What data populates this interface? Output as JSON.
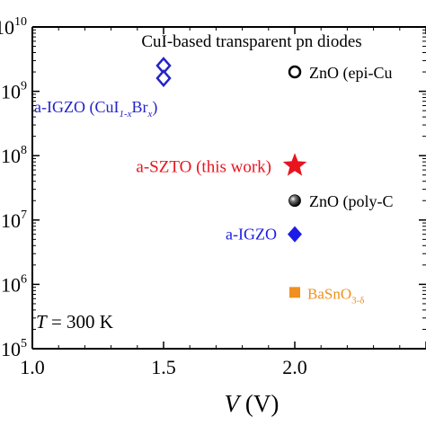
{
  "chart_data": {
    "type": "scatter",
    "title": "CuI-based transparent pn diodes",
    "x_axis": {
      "label_var": "V",
      "label_unit": "(V)",
      "range": [
        1.0,
        2.5
      ],
      "ticks": [
        "1.0",
        "1.5",
        "2.0"
      ],
      "tick_values": [
        1.0,
        1.5,
        2.0
      ],
      "minor_step": 0.1
    },
    "y_axis": {
      "scale": "log",
      "range_exponent": [
        5,
        10
      ],
      "tick_exponents": [
        5,
        6,
        7,
        8,
        9,
        10
      ],
      "tick_base_visible": "10"
    },
    "annotation": {
      "var": "T",
      "text": " = 300 K"
    },
    "points": [
      {
        "label": "ZnO (epi-Cu",
        "x": 2.0,
        "y": 2000000000.0,
        "marker": "open-circle",
        "color": "#000000"
      },
      {
        "label_main": "a-IGZO (CuI",
        "sub1": "1-x",
        "mid": "Br",
        "sub2": "x",
        "close": ")",
        "x": 1.5,
        "y": 2000000000.0,
        "marker": "double-open-diamond",
        "color": "#2323c8"
      },
      {
        "label": "a-SZTO (this work)",
        "x": 2.0,
        "y": 70000000.0,
        "marker": "star",
        "color": "#e8141e"
      },
      {
        "label": "ZnO (poly-C",
        "x": 2.0,
        "y": 20000000.0,
        "marker": "shaded-sphere",
        "color": "#000000"
      },
      {
        "label": "a-IGZO",
        "x": 2.0,
        "y": 6000000.0,
        "marker": "filled-diamond",
        "color": "#1c1ce6"
      },
      {
        "label_main": "BaSnO",
        "sub": "3-δ",
        "x": 2.0,
        "y": 750000.0,
        "marker": "filled-square",
        "color": "#f0901e"
      }
    ]
  }
}
